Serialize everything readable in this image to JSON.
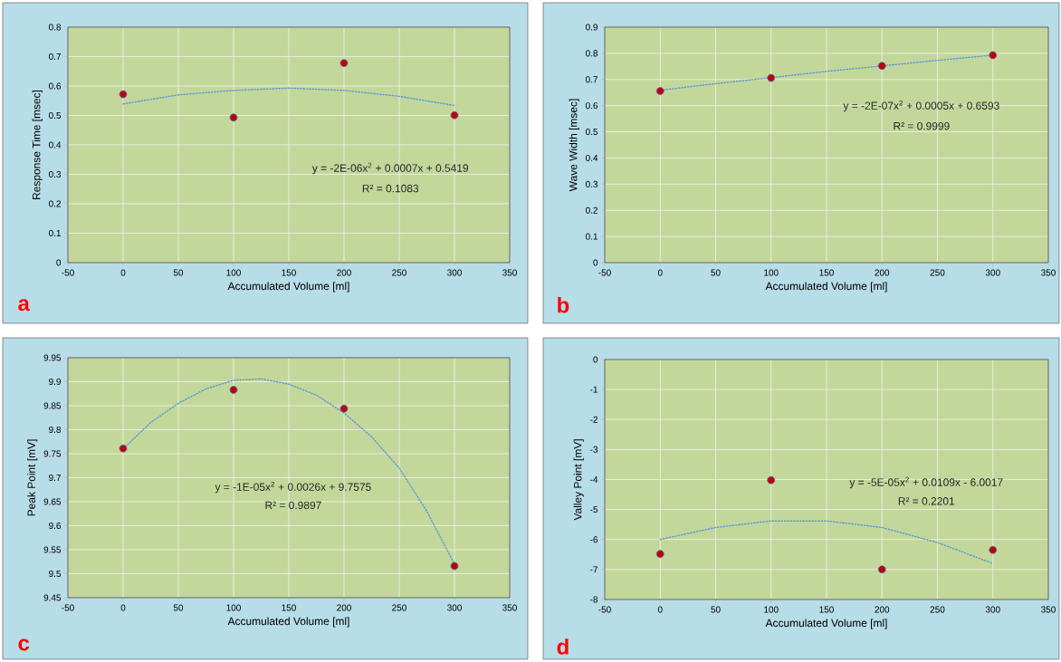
{
  "chart_data": [
    {
      "type": "scatter",
      "xlabel": "Accumulated Volume [ml]",
      "ylabel": "Response Time [msec]",
      "xlim": [
        -50,
        350
      ],
      "xticks": [
        -50,
        0,
        50,
        100,
        150,
        200,
        250,
        300,
        350
      ],
      "ylim": [
        0,
        0.8
      ],
      "yticks": [
        0,
        0.1,
        0.2,
        0.3,
        0.4,
        0.5,
        0.6,
        0.7,
        0.8
      ],
      "grid": true,
      "annotations": [
        "a",
        "y = -2E-06x$^{2}$ + 0.0007x + 0.5419",
        "R² = 0.1083"
      ],
      "series": [
        {
          "marker": "circle",
          "color": "#c00000",
          "x": [
            0,
            100,
            200,
            300
          ],
          "values": [
            0.572,
            0.493,
            0.678,
            0.501
          ]
        },
        {
          "type": "line",
          "marker": "none",
          "line_style": "dotted",
          "color": "#5b9bd5",
          "x": [
            0,
            50,
            100,
            150,
            200,
            250,
            300
          ],
          "values": [
            0.539,
            0.57,
            0.585,
            0.593,
            0.585,
            0.565,
            0.534
          ]
        }
      ]
    },
    {
      "type": "scatter",
      "xlabel": "Accumulated Volume [ml]",
      "ylabel": "Wave Width [msec]",
      "xlim": [
        -50,
        350
      ],
      "xticks": [
        -50,
        0,
        50,
        100,
        150,
        200,
        250,
        300,
        350
      ],
      "ylim": [
        0,
        0.9
      ],
      "yticks": [
        0,
        0.1,
        0.2,
        0.3,
        0.4,
        0.5,
        0.6,
        0.7,
        0.8,
        0.9
      ],
      "grid": true,
      "annotations": [
        "b",
        "y = -2E-07x$^{2}$ + 0.0005x + 0.6593",
        "R² = 0.9999"
      ],
      "series": [
        {
          "marker": "circle",
          "color": "#c00000",
          "x": [
            0,
            100,
            200,
            300
          ],
          "values": [
            0.656,
            0.706,
            0.752,
            0.793
          ]
        },
        {
          "type": "line",
          "marker": "none",
          "line_style": "dotted",
          "color": "#5b9bd5",
          "x": [
            0,
            50,
            100,
            150,
            200,
            250,
            300
          ],
          "values": [
            0.659,
            0.684,
            0.707,
            0.731,
            0.752,
            0.773,
            0.793
          ]
        }
      ]
    },
    {
      "type": "scatter",
      "xlabel": "Accumulated Volume [ml]",
      "ylabel": "Peak Point [mV]",
      "xlim": [
        -50,
        350
      ],
      "xticks": [
        -50,
        0,
        50,
        100,
        150,
        200,
        250,
        300,
        350
      ],
      "ylim": [
        9.45,
        9.95
      ],
      "yticks": [
        9.45,
        9.5,
        9.55,
        9.6,
        9.65,
        9.7,
        9.75,
        9.8,
        9.85,
        9.9,
        9.95
      ],
      "grid": true,
      "annotations": [
        "c",
        "y = -1E-05x$^{2}$ + 0.0026x + 9.7575",
        "R² = 0.9897"
      ],
      "series": [
        {
          "marker": "circle",
          "color": "#c00000",
          "x": [
            0,
            100,
            200,
            300
          ],
          "values": [
            9.761,
            9.883,
            9.844,
            9.516
          ]
        },
        {
          "type": "line",
          "marker": "none",
          "line_style": "dotted",
          "color": "#5b9bd5",
          "x": [
            0,
            25,
            50,
            75,
            100,
            125,
            150,
            175,
            200,
            225,
            250,
            275,
            300
          ],
          "values": [
            9.76,
            9.815,
            9.855,
            9.885,
            9.903,
            9.906,
            9.895,
            9.872,
            9.835,
            9.785,
            9.72,
            9.63,
            9.52
          ]
        }
      ]
    },
    {
      "type": "scatter",
      "xlabel": "Accumulated Volume [ml]",
      "ylabel": "Valley Point [mV]",
      "xlim": [
        -50,
        350
      ],
      "xticks": [
        -50,
        0,
        50,
        100,
        150,
        200,
        250,
        300,
        350
      ],
      "ylim": [
        -8,
        0
      ],
      "yticks": [
        -8,
        -7,
        -6,
        -5,
        -4,
        -3,
        -2,
        -1,
        0
      ],
      "grid": true,
      "annotations": [
        "d",
        "y = -5E-05x$^{2}$ + 0.0109x - 6.0017",
        "R² = 0.2201"
      ],
      "series": [
        {
          "marker": "circle",
          "color": "#c00000",
          "x": [
            0,
            100,
            200,
            300
          ],
          "values": [
            -6.48,
            -4.02,
            -7.0,
            -6.35
          ]
        },
        {
          "type": "line",
          "marker": "none",
          "line_style": "dotted",
          "color": "#5b9bd5",
          "x": [
            0,
            50,
            100,
            150,
            200,
            250,
            300
          ],
          "values": [
            -6.0,
            -5.6,
            -5.38,
            -5.38,
            -5.6,
            -6.1,
            -6.8
          ]
        }
      ]
    }
  ]
}
